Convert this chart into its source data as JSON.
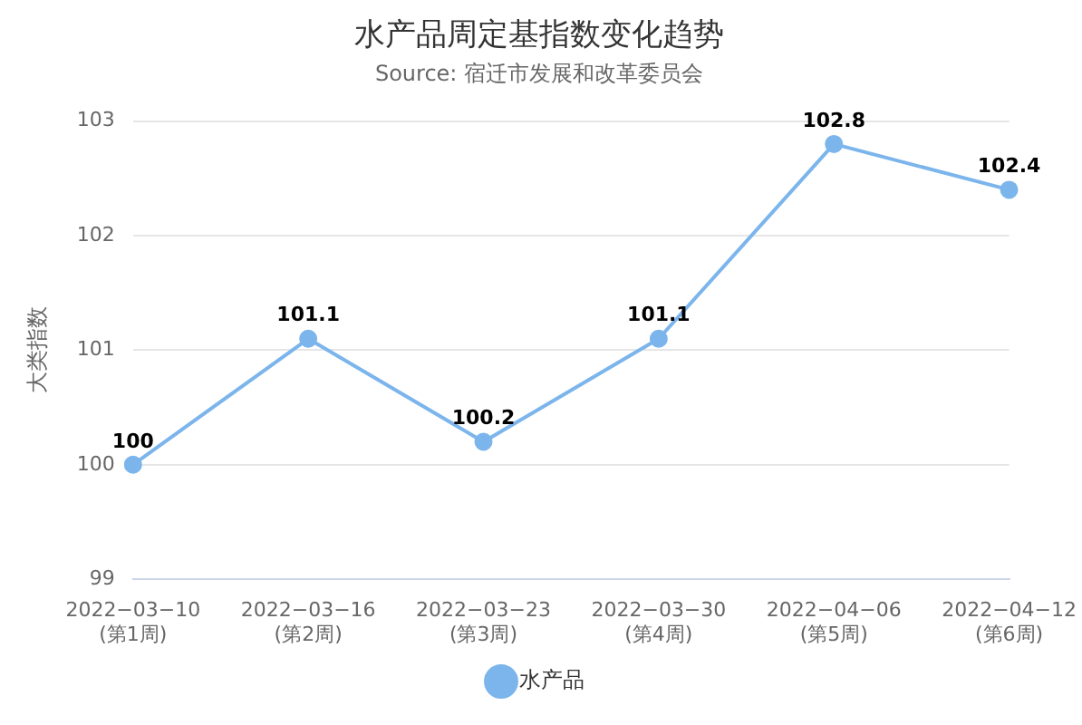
{
  "chart_data": {
    "type": "line",
    "title": "水产品周定基指数变化趋势",
    "subtitle": "Source: 宿迁市发展和改革委员会",
    "ylabel": "大类指数",
    "categories": [
      "2022−03−10\n(第1周)",
      "2022−03−16\n(第2周)",
      "2022−03−23\n(第3周)",
      "2022−03−30\n(第4周)",
      "2022−04−06\n(第5周)",
      "2022−04−12\n(第6周)"
    ],
    "series": [
      {
        "name": "水产品",
        "color": "#7cb5ec",
        "values": [
          100,
          101.1,
          100.2,
          101.1,
          102.8,
          102.4
        ]
      }
    ],
    "ylim": [
      99,
      103
    ],
    "yticks": [
      99,
      100,
      101,
      102,
      103
    ],
    "grid": "y",
    "legend": "bottom",
    "marker": "circle",
    "data_labels": true
  }
}
